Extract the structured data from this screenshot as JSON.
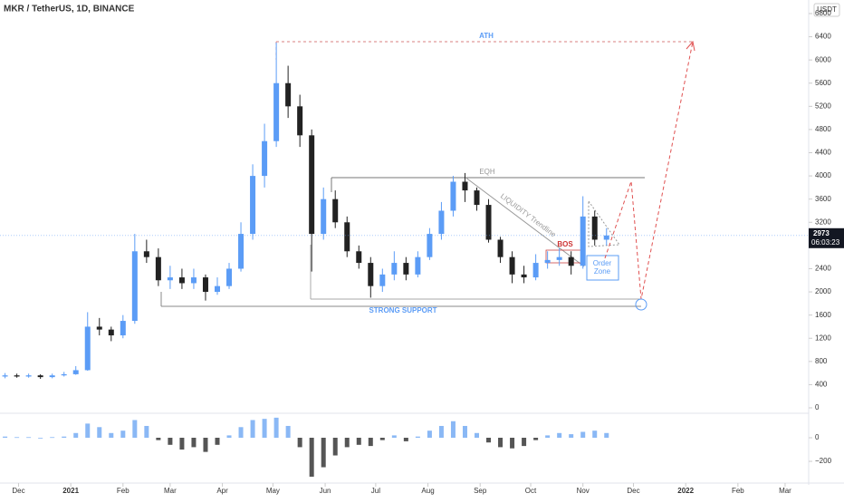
{
  "chart_data": {
    "type": "candlestick",
    "title": "MKR / TetherUS, 1D, BINANCE",
    "currency": "USDT",
    "x": [
      -8,
      -1,
      6,
      13,
      20,
      27,
      34,
      41,
      48,
      55,
      62,
      69,
      76,
      83,
      90,
      97,
      104,
      111,
      118,
      125,
      132,
      139,
      146,
      153,
      160,
      167,
      174,
      181,
      188,
      195,
      202,
      209,
      216,
      223,
      230,
      237,
      244,
      251,
      258,
      265,
      272,
      279,
      286,
      293,
      300,
      307,
      314,
      321,
      328,
      335,
      342,
      349
    ],
    "open": [
      540,
      560,
      540,
      560,
      530,
      560,
      580,
      650,
      1400,
      1350,
      1250,
      1500,
      2700,
      2600,
      2200,
      2250,
      2150,
      2250,
      2000,
      2100,
      2400,
      3000,
      4000,
      4600,
      5600,
      5200,
      4700,
      3000,
      3600,
      3200,
      2700,
      2500,
      2100,
      2300,
      2500,
      2300,
      2600,
      3000,
      3400,
      3900,
      3750,
      3500,
      2900,
      2600,
      2300,
      2250,
      2500,
      2550,
      2600,
      2450,
      3300,
      2900
    ],
    "high": [
      600,
      590,
      590,
      580,
      590,
      620,
      720,
      1650,
      1550,
      1400,
      1600,
      3000,
      2900,
      2750,
      2450,
      2400,
      2400,
      2300,
      2250,
      2500,
      3200,
      4200,
      4900,
      6300,
      5900,
      5400,
      4800,
      3800,
      3750,
      3300,
      2800,
      2600,
      2400,
      2700,
      2600,
      2700,
      3100,
      3550,
      4000,
      4050,
      3800,
      3600,
      2950,
      2700,
      2450,
      2650,
      2700,
      2750,
      2700,
      3650,
      3400,
      3100
    ],
    "low": [
      510,
      520,
      520,
      500,
      510,
      540,
      570,
      640,
      1250,
      1150,
      1200,
      1450,
      2500,
      2100,
      2050,
      2050,
      2050,
      1850,
      1950,
      2050,
      2350,
      2900,
      3800,
      4500,
      5000,
      4500,
      2350,
      2900,
      3100,
      2600,
      2400,
      1900,
      2000,
      2200,
      2200,
      2250,
      2550,
      2900,
      3300,
      3550,
      3400,
      2850,
      2500,
      2150,
      2150,
      2200,
      2400,
      2450,
      2300,
      2400,
      2800,
      2800
    ],
    "close": [
      560,
      540,
      560,
      530,
      560,
      580,
      650,
      1400,
      1350,
      1250,
      1500,
      2700,
      2600,
      2200,
      2250,
      2150,
      2250,
      2000,
      2100,
      2400,
      3000,
      4000,
      4600,
      5600,
      5200,
      4700,
      3000,
      3600,
      3200,
      2700,
      2500,
      2100,
      2300,
      2500,
      2300,
      2600,
      3000,
      3400,
      3900,
      3750,
      3500,
      2900,
      2600,
      2300,
      2250,
      2500,
      2550,
      2600,
      2450,
      3300,
      2900,
      2973
    ],
    "up_color": "#5b9cf6",
    "down_color": "#222222",
    "xlim": [
      -11,
      469
    ],
    "xticks": [
      {
        "value": 0,
        "label": "Dec"
      },
      {
        "value": 31,
        "label": "2021"
      },
      {
        "value": 62,
        "label": "Feb"
      },
      {
        "value": 90,
        "label": "Mar"
      },
      {
        "value": 121,
        "label": "Apr"
      },
      {
        "value": 151,
        "label": "May"
      },
      {
        "value": 182,
        "label": "Jun"
      },
      {
        "value": 212,
        "label": "Jul"
      },
      {
        "value": 243,
        "label": "Aug"
      },
      {
        "value": 274,
        "label": "Sep"
      },
      {
        "value": 304,
        "label": "Oct"
      },
      {
        "value": 335,
        "label": "Nov"
      },
      {
        "value": 365,
        "label": "Dec"
      },
      {
        "value": 396,
        "label": "2022"
      },
      {
        "value": 427,
        "label": "Feb"
      },
      {
        "value": 455,
        "label": "Mar"
      }
    ],
    "ylim": [
      -78,
      7034
    ],
    "yticks": [
      0,
      400,
      800,
      1200,
      1600,
      2000,
      2400,
      2800,
      3200,
      3600,
      4000,
      4400,
      4800,
      5200,
      5600,
      6000,
      6400,
      6800
    ],
    "countdown": "06:03:23",
    "annotations": {
      "ath": "ATH",
      "eqh": "EQH",
      "trendline": "LIQUIDITY Trendline",
      "bos": "BOS",
      "order_zone": [
        "Order",
        "Zone"
      ],
      "support": "STRONG SUPPORT"
    },
    "indicator": {
      "type": "histogram",
      "values": [
        10,
        5,
        5,
        0,
        5,
        10,
        40,
        120,
        90,
        40,
        60,
        150,
        100,
        -20,
        -60,
        -100,
        -80,
        -120,
        -60,
        20,
        90,
        150,
        160,
        170,
        100,
        -80,
        -330,
        -250,
        -150,
        -80,
        -60,
        -70,
        -20,
        20,
        -30,
        10,
        60,
        100,
        140,
        100,
        40,
        -40,
        -80,
        -90,
        -70,
        -20,
        20,
        40,
        30,
        50,
        60,
        40
      ],
      "positive_color": "#8ab8f5",
      "negative_color": "#555555",
      "y2lim": [
        -361,
        192
      ],
      "y2ticks": [
        0,
        {
          "value": -200,
          "label": "−200"
        }
      ]
    }
  }
}
